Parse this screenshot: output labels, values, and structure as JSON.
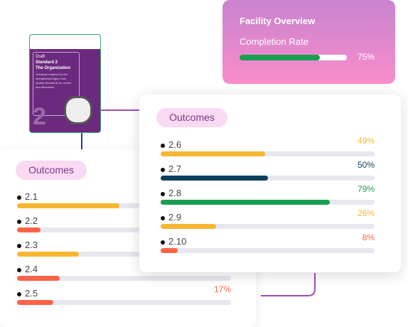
{
  "facility_overview": {
    "title": "Facility Overview",
    "metric": "Completion Rate",
    "value": 75,
    "value_label": "75%",
    "color": "#1a9e4f"
  },
  "document": {
    "status": "Draft",
    "title": "Standard 2",
    "subtitle": "The Organization",
    "description": "Guidance material for the strengthened Aged Care Quality Standards for review and discussion",
    "number": "2"
  },
  "outcome_panels": [
    {
      "title": "Outcomes",
      "xlim": [
        0,
        100
      ],
      "items": [
        {
          "name": "2.1",
          "value": 48,
          "color": "#f7b731"
        },
        {
          "name": "2.2",
          "value": 11,
          "color": "#fe6347"
        },
        {
          "name": "2.3",
          "value": 29,
          "color": "#f7b731"
        },
        {
          "name": "2.4",
          "value": 20,
          "color": "#fe6347"
        },
        {
          "name": "2.5",
          "value": 17,
          "value_label": "17%",
          "color": "#fe6347"
        }
      ]
    },
    {
      "title": "Outcomes",
      "xlim": [
        0,
        100
      ],
      "items": [
        {
          "name": "2.6",
          "value": 49,
          "value_label": "49%",
          "color": "#f7b731"
        },
        {
          "name": "2.7",
          "value": 50,
          "value_label": "50%",
          "color": "#0d3f5f"
        },
        {
          "name": "2.8",
          "value": 79,
          "value_label": "79%",
          "color": "#1a9e4f"
        },
        {
          "name": "2.9",
          "value": 26,
          "value_label": "26%",
          "color": "#f7b731"
        },
        {
          "name": "2.10",
          "value": 8,
          "value_label": "8%",
          "color": "#fe6347"
        }
      ]
    }
  ]
}
